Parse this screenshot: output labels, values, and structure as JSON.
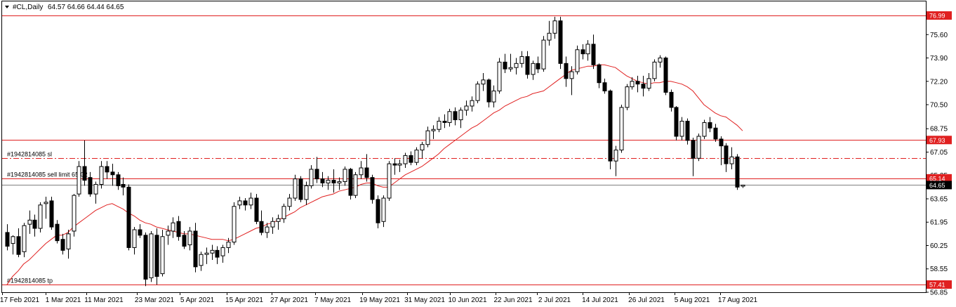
{
  "header": {
    "symbol": "#CL,Daily",
    "ohlc": "64.57 64.66 64.44 64.65",
    "toggle_icon": "triangle-down-icon"
  },
  "colors": {
    "up_body": "#ffffff",
    "down_body": "#000000",
    "candle_outline": "#000000",
    "ma_line": "#e02020",
    "level_line": "#e02020",
    "level_tag": "#e02020",
    "price_tag": "#000000",
    "axis": "#000000"
  },
  "chart_data": {
    "type": "candlestick",
    "y_range": [
      56.85,
      77.3
    ],
    "y_ticks": [
      "75.60",
      "73.90",
      "72.20",
      "70.50",
      "68.75",
      "67.05",
      "65.35",
      "63.65",
      "61.95",
      "60.25",
      "58.55",
      "56.85"
    ],
    "x_ticks": [
      "17 Feb 2021",
      "1 Mar 2021",
      "11 Mar 2021",
      "23 Mar 2021",
      "5 Apr 2021",
      "15 Apr 2021",
      "27 Apr 2021",
      "7 May 2021",
      "19 May 2021",
      "31 May 2021",
      "10 Jun 2021",
      "22 Jun 2021",
      "2 Jul 2021",
      "14 Jul 2021",
      "26 Jul 2021",
      "5 Aug 2021",
      "17 Aug 2021"
    ],
    "levels": [
      {
        "price": 76.99,
        "label": "",
        "tag": "76.99",
        "style": "solid"
      },
      {
        "price": 67.93,
        "label": "",
        "tag": "67.93",
        "style": "solid"
      },
      {
        "price": 66.6,
        "label": "#1942814085 sl",
        "tag": "",
        "style": "dashdot"
      },
      {
        "price": 65.14,
        "label": "#1942814085 sell limit 65.02",
        "tag": "65.14",
        "style": "solid"
      },
      {
        "price": 57.41,
        "label": "#1942814085 tp",
        "tag": "57.41",
        "style": "solid"
      }
    ],
    "last_price": {
      "price": 64.65,
      "tag": "64.65"
    },
    "ma_period_note": "",
    "candles": [
      {
        "d": "16 Feb",
        "o": 61.2,
        "h": 61.8,
        "l": 59.9,
        "c": 60.2
      },
      {
        "d": "17 Feb",
        "o": 60.4,
        "h": 61.0,
        "l": 59.6,
        "c": 60.9
      },
      {
        "d": "18 Feb",
        "o": 60.9,
        "h": 61.5,
        "l": 59.4,
        "c": 59.6
      },
      {
        "d": "19 Feb",
        "o": 59.8,
        "h": 61.9,
        "l": 59.4,
        "c": 61.7
      },
      {
        "d": "22 Feb",
        "o": 61.8,
        "h": 62.8,
        "l": 61.1,
        "c": 62.1
      },
      {
        "d": "23 Feb",
        "o": 62.1,
        "h": 62.5,
        "l": 60.9,
        "c": 61.5
      },
      {
        "d": "24 Feb",
        "o": 61.5,
        "h": 63.4,
        "l": 61.2,
        "c": 63.2
      },
      {
        "d": "25 Feb",
        "o": 63.3,
        "h": 63.8,
        "l": 62.2,
        "c": 63.4
      },
      {
        "d": "26 Feb",
        "o": 63.5,
        "h": 63.8,
        "l": 61.4,
        "c": 61.6
      },
      {
        "d": "1 Mar",
        "o": 61.8,
        "h": 62.1,
        "l": 60.4,
        "c": 60.6
      },
      {
        "d": "2 Mar",
        "o": 60.7,
        "h": 61.1,
        "l": 59.6,
        "c": 59.9
      },
      {
        "d": "3 Mar",
        "o": 60.0,
        "h": 61.4,
        "l": 59.3,
        "c": 61.1
      },
      {
        "d": "4 Mar",
        "o": 61.3,
        "h": 64.0,
        "l": 60.9,
        "c": 63.9
      },
      {
        "d": "5 Mar",
        "o": 64.0,
        "h": 66.4,
        "l": 63.8,
        "c": 66.0
      },
      {
        "d": "8 Mar",
        "o": 66.0,
        "h": 67.9,
        "l": 64.6,
        "c": 65.0
      },
      {
        "d": "9 Mar",
        "o": 65.2,
        "h": 65.6,
        "l": 63.8,
        "c": 64.0
      },
      {
        "d": "10 Mar",
        "o": 64.0,
        "h": 64.9,
        "l": 63.3,
        "c": 64.7
      },
      {
        "d": "11 Mar",
        "o": 64.7,
        "h": 66.4,
        "l": 64.4,
        "c": 66.0
      },
      {
        "d": "12 Mar",
        "o": 66.0,
        "h": 66.4,
        "l": 65.1,
        "c": 65.6
      },
      {
        "d": "15 Mar",
        "o": 65.6,
        "h": 66.2,
        "l": 64.6,
        "c": 65.4
      },
      {
        "d": "16 Mar",
        "o": 65.4,
        "h": 65.6,
        "l": 64.3,
        "c": 64.6
      },
      {
        "d": "17 Mar",
        "o": 64.7,
        "h": 65.2,
        "l": 63.9,
        "c": 64.5
      },
      {
        "d": "18 Mar",
        "o": 64.5,
        "h": 64.7,
        "l": 59.9,
        "c": 60.1
      },
      {
        "d": "19 Mar",
        "o": 60.1,
        "h": 61.6,
        "l": 59.6,
        "c": 61.4
      },
      {
        "d": "22 Mar",
        "o": 61.4,
        "h": 61.8,
        "l": 60.8,
        "c": 61.0
      },
      {
        "d": "23 Mar",
        "o": 61.0,
        "h": 61.2,
        "l": 57.3,
        "c": 57.8
      },
      {
        "d": "24 Mar",
        "o": 57.9,
        "h": 61.3,
        "l": 57.6,
        "c": 61.1
      },
      {
        "d": "25 Mar",
        "o": 61.0,
        "h": 61.5,
        "l": 57.4,
        "c": 58.0
      },
      {
        "d": "26 Mar",
        "o": 58.2,
        "h": 61.4,
        "l": 58.0,
        "c": 60.9
      },
      {
        "d": "29 Mar",
        "o": 61.0,
        "h": 61.7,
        "l": 60.3,
        "c": 61.3
      },
      {
        "d": "30 Mar",
        "o": 61.3,
        "h": 62.3,
        "l": 60.8,
        "c": 61.9
      },
      {
        "d": "31 Mar",
        "o": 62.0,
        "h": 62.4,
        "l": 60.6,
        "c": 60.9
      },
      {
        "d": "1 Apr",
        "o": 61.0,
        "h": 61.3,
        "l": 60.0,
        "c": 60.2
      },
      {
        "d": "2 Apr",
        "o": 60.3,
        "h": 61.6,
        "l": 59.9,
        "c": 61.3
      },
      {
        "d": "5 Apr",
        "o": 61.3,
        "h": 61.9,
        "l": 58.3,
        "c": 58.7
      },
      {
        "d": "6 Apr",
        "o": 58.8,
        "h": 59.8,
        "l": 58.4,
        "c": 59.6
      },
      {
        "d": "7 Apr",
        "o": 59.6,
        "h": 60.1,
        "l": 58.9,
        "c": 59.7
      },
      {
        "d": "8 Apr",
        "o": 59.7,
        "h": 60.3,
        "l": 59.2,
        "c": 59.9
      },
      {
        "d": "9 Apr",
        "o": 59.9,
        "h": 60.2,
        "l": 58.9,
        "c": 59.4
      },
      {
        "d": "12 Apr",
        "o": 59.5,
        "h": 60.3,
        "l": 59.0,
        "c": 60.1
      },
      {
        "d": "13 Apr",
        "o": 60.1,
        "h": 60.8,
        "l": 59.7,
        "c": 60.5
      },
      {
        "d": "14 Apr",
        "o": 60.5,
        "h": 63.4,
        "l": 60.3,
        "c": 63.1
      },
      {
        "d": "15 Apr",
        "o": 63.2,
        "h": 63.8,
        "l": 62.9,
        "c": 63.5
      },
      {
        "d": "16 Apr",
        "o": 63.5,
        "h": 63.7,
        "l": 62.8,
        "c": 63.2
      },
      {
        "d": "19 Apr",
        "o": 63.2,
        "h": 64.1,
        "l": 62.9,
        "c": 63.7
      },
      {
        "d": "20 Apr",
        "o": 63.7,
        "h": 64.0,
        "l": 61.8,
        "c": 62.0
      },
      {
        "d": "21 Apr",
        "o": 62.0,
        "h": 62.8,
        "l": 61.0,
        "c": 61.2
      },
      {
        "d": "22 Apr",
        "o": 61.2,
        "h": 61.9,
        "l": 60.8,
        "c": 61.6
      },
      {
        "d": "23 Apr",
        "o": 61.6,
        "h": 62.3,
        "l": 61.1,
        "c": 62.0
      },
      {
        "d": "26 Apr",
        "o": 62.0,
        "h": 62.5,
        "l": 61.4,
        "c": 62.2
      },
      {
        "d": "27 Apr",
        "o": 62.2,
        "h": 63.3,
        "l": 61.9,
        "c": 63.1
      },
      {
        "d": "28 Apr",
        "o": 63.1,
        "h": 64.0,
        "l": 62.8,
        "c": 63.7
      },
      {
        "d": "29 Apr",
        "o": 63.7,
        "h": 65.4,
        "l": 63.5,
        "c": 65.1
      },
      {
        "d": "30 Apr",
        "o": 65.1,
        "h": 65.3,
        "l": 63.4,
        "c": 63.6
      },
      {
        "d": "3 May",
        "o": 63.6,
        "h": 64.9,
        "l": 63.2,
        "c": 64.6
      },
      {
        "d": "4 May",
        "o": 64.6,
        "h": 66.1,
        "l": 64.4,
        "c": 65.8
      },
      {
        "d": "5 May",
        "o": 65.8,
        "h": 66.7,
        "l": 64.8,
        "c": 65.1
      },
      {
        "d": "6 May",
        "o": 65.1,
        "h": 65.6,
        "l": 64.5,
        "c": 64.8
      },
      {
        "d": "7 May",
        "o": 64.8,
        "h": 65.3,
        "l": 64.3,
        "c": 65.0
      },
      {
        "d": "10 May",
        "o": 65.0,
        "h": 65.8,
        "l": 64.1,
        "c": 64.8
      },
      {
        "d": "11 May",
        "o": 64.8,
        "h": 65.2,
        "l": 64.3,
        "c": 64.9
      },
      {
        "d": "12 May",
        "o": 64.9,
        "h": 66.0,
        "l": 64.6,
        "c": 65.8
      },
      {
        "d": "13 May",
        "o": 65.8,
        "h": 65.9,
        "l": 63.6,
        "c": 63.9
      },
      {
        "d": "14 May",
        "o": 63.9,
        "h": 65.6,
        "l": 63.7,
        "c": 65.4
      },
      {
        "d": "17 May",
        "o": 65.4,
        "h": 66.4,
        "l": 65.1,
        "c": 65.9
      },
      {
        "d": "18 May",
        "o": 65.9,
        "h": 66.9,
        "l": 64.9,
        "c": 65.2
      },
      {
        "d": "19 May",
        "o": 65.2,
        "h": 65.4,
        "l": 63.3,
        "c": 63.6
      },
      {
        "d": "20 May",
        "o": 63.6,
        "h": 63.9,
        "l": 61.5,
        "c": 61.9
      },
      {
        "d": "21 May",
        "o": 62.0,
        "h": 63.9,
        "l": 61.6,
        "c": 63.7
      },
      {
        "d": "24 May",
        "o": 63.7,
        "h": 66.4,
        "l": 63.5,
        "c": 66.2
      },
      {
        "d": "25 May",
        "o": 66.2,
        "h": 66.6,
        "l": 65.4,
        "c": 66.1
      },
      {
        "d": "26 May",
        "o": 66.1,
        "h": 66.5,
        "l": 65.6,
        "c": 66.2
      },
      {
        "d": "27 May",
        "o": 66.2,
        "h": 67.0,
        "l": 65.9,
        "c": 66.8
      },
      {
        "d": "28 May",
        "o": 66.8,
        "h": 67.1,
        "l": 66.1,
        "c": 66.3
      },
      {
        "d": "31 May",
        "o": 66.3,
        "h": 67.4,
        "l": 66.1,
        "c": 67.2
      },
      {
        "d": "1 Jun",
        "o": 67.2,
        "h": 67.8,
        "l": 66.6,
        "c": 67.6
      },
      {
        "d": "2 Jun",
        "o": 67.6,
        "h": 68.9,
        "l": 67.4,
        "c": 68.6
      },
      {
        "d": "3 Jun",
        "o": 68.6,
        "h": 69.0,
        "l": 68.0,
        "c": 68.7
      },
      {
        "d": "4 Jun",
        "o": 68.7,
        "h": 69.6,
        "l": 68.5,
        "c": 69.3
      },
      {
        "d": "7 Jun",
        "o": 69.3,
        "h": 69.8,
        "l": 68.8,
        "c": 69.2
      },
      {
        "d": "8 Jun",
        "o": 69.2,
        "h": 70.2,
        "l": 68.9,
        "c": 70.0
      },
      {
        "d": "9 Jun",
        "o": 70.0,
        "h": 70.3,
        "l": 69.0,
        "c": 69.4
      },
      {
        "d": "10 Jun",
        "o": 69.4,
        "h": 70.3,
        "l": 68.8,
        "c": 70.1
      },
      {
        "d": "11 Jun",
        "o": 70.1,
        "h": 70.8,
        "l": 69.7,
        "c": 70.4
      },
      {
        "d": "14 Jun",
        "o": 70.4,
        "h": 71.1,
        "l": 70.0,
        "c": 70.8
      },
      {
        "d": "15 Jun",
        "o": 70.8,
        "h": 72.2,
        "l": 70.6,
        "c": 72.0
      },
      {
        "d": "16 Jun",
        "o": 72.0,
        "h": 72.8,
        "l": 71.5,
        "c": 72.3
      },
      {
        "d": "17 Jun",
        "o": 72.3,
        "h": 72.4,
        "l": 70.3,
        "c": 70.7
      },
      {
        "d": "18 Jun",
        "o": 70.7,
        "h": 71.9,
        "l": 70.3,
        "c": 71.5
      },
      {
        "d": "21 Jun",
        "o": 71.5,
        "h": 73.9,
        "l": 71.3,
        "c": 73.6
      },
      {
        "d": "22 Jun",
        "o": 73.6,
        "h": 74.2,
        "l": 72.8,
        "c": 73.1
      },
      {
        "d": "23 Jun",
        "o": 73.1,
        "h": 74.2,
        "l": 72.9,
        "c": 73.2
      },
      {
        "d": "24 Jun",
        "o": 73.2,
        "h": 73.9,
        "l": 72.7,
        "c": 73.5
      },
      {
        "d": "25 Jun",
        "o": 73.5,
        "h": 74.4,
        "l": 73.2,
        "c": 74.0
      },
      {
        "d": "28 Jun",
        "o": 74.0,
        "h": 74.4,
        "l": 72.4,
        "c": 72.7
      },
      {
        "d": "29 Jun",
        "o": 72.7,
        "h": 73.7,
        "l": 72.3,
        "c": 73.5
      },
      {
        "d": "30 Jun",
        "o": 73.5,
        "h": 74.0,
        "l": 72.8,
        "c": 73.1
      },
      {
        "d": "1 Jul",
        "o": 73.1,
        "h": 75.5,
        "l": 72.9,
        "c": 75.2
      },
      {
        "d": "2 Jul",
        "o": 75.2,
        "h": 76.6,
        "l": 74.8,
        "c": 75.7
      },
      {
        "d": "5 Jul",
        "o": 75.7,
        "h": 76.9,
        "l": 75.3,
        "c": 76.6
      },
      {
        "d": "6 Jul",
        "o": 76.6,
        "h": 76.9,
        "l": 73.1,
        "c": 73.5
      },
      {
        "d": "7 Jul",
        "o": 73.5,
        "h": 74.0,
        "l": 71.8,
        "c": 72.4
      },
      {
        "d": "8 Jul",
        "o": 72.4,
        "h": 73.3,
        "l": 71.2,
        "c": 72.9
      },
      {
        "d": "9 Jul",
        "o": 72.9,
        "h": 74.8,
        "l": 72.7,
        "c": 74.5
      },
      {
        "d": "12 Jul",
        "o": 74.5,
        "h": 74.9,
        "l": 73.8,
        "c": 74.2
      },
      {
        "d": "13 Jul",
        "o": 74.2,
        "h": 75.2,
        "l": 73.7,
        "c": 74.9
      },
      {
        "d": "14 Jul",
        "o": 74.9,
        "h": 75.6,
        "l": 73.1,
        "c": 73.4
      },
      {
        "d": "15 Jul",
        "o": 73.4,
        "h": 73.5,
        "l": 71.7,
        "c": 72.1
      },
      {
        "d": "16 Jul",
        "o": 72.1,
        "h": 72.4,
        "l": 71.3,
        "c": 71.5
      },
      {
        "d": "19 Jul",
        "o": 71.5,
        "h": 71.6,
        "l": 65.8,
        "c": 66.4
      },
      {
        "d": "20 Jul",
        "o": 66.4,
        "h": 67.5,
        "l": 65.3,
        "c": 67.2
      },
      {
        "d": "21 Jul",
        "o": 67.2,
        "h": 70.5,
        "l": 67.0,
        "c": 70.3
      },
      {
        "d": "22 Jul",
        "o": 70.3,
        "h": 72.0,
        "l": 70.1,
        "c": 71.8
      },
      {
        "d": "23 Jul",
        "o": 71.8,
        "h": 72.5,
        "l": 71.6,
        "c": 72.2
      },
      {
        "d": "26 Jul",
        "o": 72.2,
        "h": 72.6,
        "l": 71.4,
        "c": 72.0
      },
      {
        "d": "27 Jul",
        "o": 72.0,
        "h": 72.6,
        "l": 71.1,
        "c": 71.7
      },
      {
        "d": "28 Jul",
        "o": 71.7,
        "h": 72.8,
        "l": 71.5,
        "c": 72.4
      },
      {
        "d": "29 Jul",
        "o": 72.4,
        "h": 73.8,
        "l": 72.2,
        "c": 73.6
      },
      {
        "d": "30 Jul",
        "o": 73.6,
        "h": 74.1,
        "l": 73.2,
        "c": 73.9
      },
      {
        "d": "2 Aug",
        "o": 73.9,
        "h": 74.0,
        "l": 71.2,
        "c": 71.4
      },
      {
        "d": "3 Aug",
        "o": 71.4,
        "h": 71.6,
        "l": 70.0,
        "c": 70.3
      },
      {
        "d": "4 Aug",
        "o": 70.3,
        "h": 70.4,
        "l": 67.9,
        "c": 68.2
      },
      {
        "d": "5 Aug",
        "o": 68.2,
        "h": 69.6,
        "l": 67.9,
        "c": 69.3
      },
      {
        "d": "6 Aug",
        "o": 69.3,
        "h": 69.5,
        "l": 67.6,
        "c": 67.9
      },
      {
        "d": "9 Aug",
        "o": 67.9,
        "h": 68.1,
        "l": 65.3,
        "c": 66.6
      },
      {
        "d": "10 Aug",
        "o": 66.6,
        "h": 68.4,
        "l": 66.4,
        "c": 68.2
      },
      {
        "d": "11 Aug",
        "o": 68.2,
        "h": 69.4,
        "l": 68.0,
        "c": 69.2
      },
      {
        "d": "12 Aug",
        "o": 69.2,
        "h": 69.6,
        "l": 68.5,
        "c": 68.8
      },
      {
        "d": "13 Aug",
        "o": 68.8,
        "h": 69.1,
        "l": 67.8,
        "c": 68.0
      },
      {
        "d": "16 Aug",
        "o": 68.0,
        "h": 68.2,
        "l": 66.1,
        "c": 67.5
      },
      {
        "d": "17 Aug",
        "o": 67.5,
        "h": 67.7,
        "l": 65.6,
        "c": 66.2
      },
      {
        "d": "18 Aug",
        "o": 66.2,
        "h": 67.4,
        "l": 65.8,
        "c": 66.7
      },
      {
        "d": "19 Aug",
        "o": 66.7,
        "h": 66.9,
        "l": 64.3,
        "c": 64.5
      },
      {
        "d": "20 Aug",
        "o": 64.57,
        "h": 64.66,
        "l": 64.44,
        "c": 64.65
      }
    ],
    "ma": [
      57.4,
      58.0,
      58.4,
      58.9,
      59.2,
      59.6,
      60.0,
      60.4,
      60.7,
      61.0,
      61.0,
      61.2,
      61.6,
      61.9,
      62.2,
      62.5,
      62.8,
      63.0,
      63.2,
      63.3,
      63.1,
      62.9,
      62.6,
      62.4,
      62.1,
      61.9,
      61.8,
      61.6,
      61.5,
      61.4,
      61.3,
      61.2,
      61.1,
      61.1,
      61.0,
      60.9,
      60.8,
      60.7,
      60.7,
      60.7,
      60.6,
      60.7,
      60.9,
      61.1,
      61.3,
      61.5,
      61.6,
      61.8,
      61.9,
      62.1,
      62.3,
      62.5,
      62.7,
      63.0,
      63.2,
      63.4,
      63.6,
      63.8,
      63.9,
      64.0,
      64.2,
      64.3,
      64.4,
      64.5,
      64.7,
      64.8,
      64.8,
      64.6,
      64.5,
      64.5,
      64.8,
      65.1,
      65.4,
      65.6,
      65.8,
      66.0,
      66.3,
      66.6,
      66.9,
      67.3,
      67.6,
      67.9,
      68.2,
      68.5,
      68.8,
      69.0,
      69.3,
      69.6,
      69.9,
      70.1,
      70.4,
      70.6,
      70.8,
      71.0,
      71.1,
      71.3,
      71.4,
      71.5,
      71.8,
      72.1,
      72.4,
      72.7,
      73.0,
      73.1,
      73.2,
      73.3,
      73.3,
      73.4,
      73.4,
      73.3,
      73.2,
      72.9,
      72.6,
      72.4,
      72.2,
      72.1,
      72.0,
      72.1,
      72.1,
      72.2,
      72.2,
      72.1,
      72.0,
      71.8,
      71.5,
      71.0,
      70.5,
      70.2,
      69.9,
      69.7,
      69.6,
      69.3,
      69.0,
      68.6
    ]
  }
}
